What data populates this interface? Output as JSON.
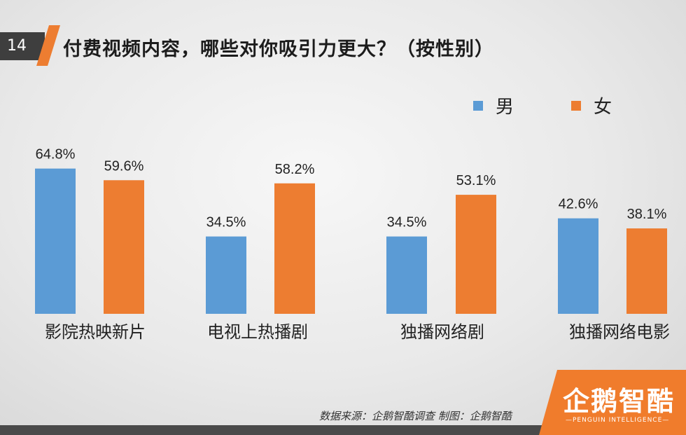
{
  "page_number": "14",
  "title": "付费视频内容，哪些对你吸引力更大？（按性别）",
  "legend": [
    {
      "label": "男",
      "color": "#5B9BD5"
    },
    {
      "label": "女",
      "color": "#ED7D31"
    }
  ],
  "source": "数据来源：企鹅智酷调查    制图：企鹅智酷",
  "brand": {
    "name": "企鹅智酷",
    "sub": "—PENGUIN INTELLIGENCE—",
    "color": "#F07C2C"
  },
  "chart_data": {
    "type": "bar",
    "categories": [
      "影院热映新片",
      "电视上热播剧",
      "独播网络剧",
      "独播网络电影"
    ],
    "series": [
      {
        "name": "男",
        "values": [
          64.8,
          34.5,
          34.5,
          42.6
        ],
        "labels": [
          "64.8%",
          "34.5%",
          "34.5%",
          "42.6%"
        ],
        "color": "#5B9BD5"
      },
      {
        "name": "女",
        "values": [
          59.6,
          58.2,
          53.1,
          38.1
        ],
        "labels": [
          "59.6%",
          "58.2%",
          "53.1%",
          "38.1%"
        ],
        "color": "#ED7D31"
      }
    ],
    "title": "付费视频内容，哪些对你吸引力更大？（按性别）",
    "xlabel": "",
    "ylabel": "",
    "ylim": [
      0,
      70
    ],
    "grid": false,
    "legend_position": "top-right"
  }
}
